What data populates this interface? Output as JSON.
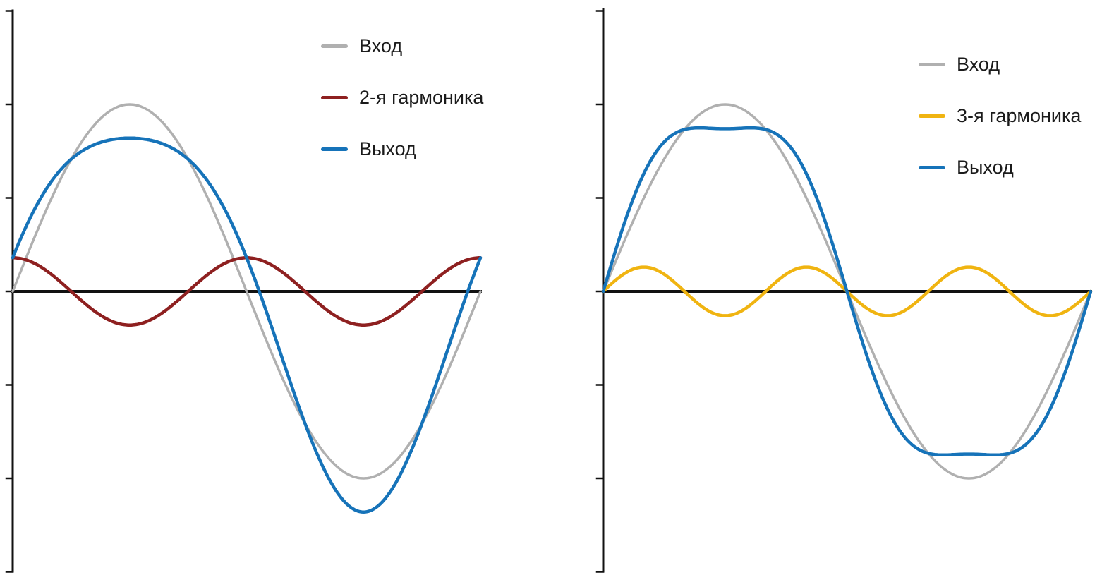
{
  "page": {
    "background": "#ffffff",
    "axis_color": "#111111"
  },
  "chart_data": [
    {
      "type": "line",
      "title": "",
      "xlabel": "",
      "ylabel": "",
      "x_range_rad": [
        0,
        6.2832
      ],
      "x_description": "one period of the fundamental signal",
      "ylim": [
        -1.55,
        1.55
      ],
      "y_ticks": [
        -1.5,
        -1.0,
        -0.5,
        0,
        0.5,
        1.0,
        1.5
      ],
      "grid": false,
      "legend_position": "top-center",
      "series": [
        {
          "name": "Вход",
          "role": "input",
          "color": "#b0b0b0",
          "waveform": "sin",
          "harmonic": 1,
          "amplitude": 1.0
        },
        {
          "name": "2-я гармоника",
          "role": "harmonic",
          "color": "#8e2020",
          "waveform": "cos",
          "harmonic": 2,
          "amplitude": 0.18
        },
        {
          "name": "Выход",
          "role": "output",
          "color": "#1673b9",
          "sum_of": [
            0,
            1
          ]
        }
      ]
    },
    {
      "type": "line",
      "title": "",
      "xlabel": "",
      "ylabel": "",
      "x_range_rad": [
        0,
        6.2832
      ],
      "x_description": "one period of the fundamental signal",
      "ylim": [
        -1.55,
        1.55
      ],
      "y_ticks": [
        -1.5,
        -1.0,
        -0.5,
        0,
        0.5,
        1.0,
        1.5
      ],
      "grid": false,
      "legend_position": "top-center",
      "series": [
        {
          "name": "Вход",
          "role": "input",
          "color": "#b0b0b0",
          "waveform": "sin",
          "harmonic": 1,
          "amplitude": 1.0
        },
        {
          "name": "3-я гармоника",
          "role": "harmonic",
          "color": "#f0b411",
          "waveform": "sin",
          "harmonic": 3,
          "amplitude": 0.13
        },
        {
          "name": "Выход",
          "role": "output",
          "color": "#1673b9",
          "sum_of": [
            0,
            1
          ]
        }
      ]
    }
  ]
}
